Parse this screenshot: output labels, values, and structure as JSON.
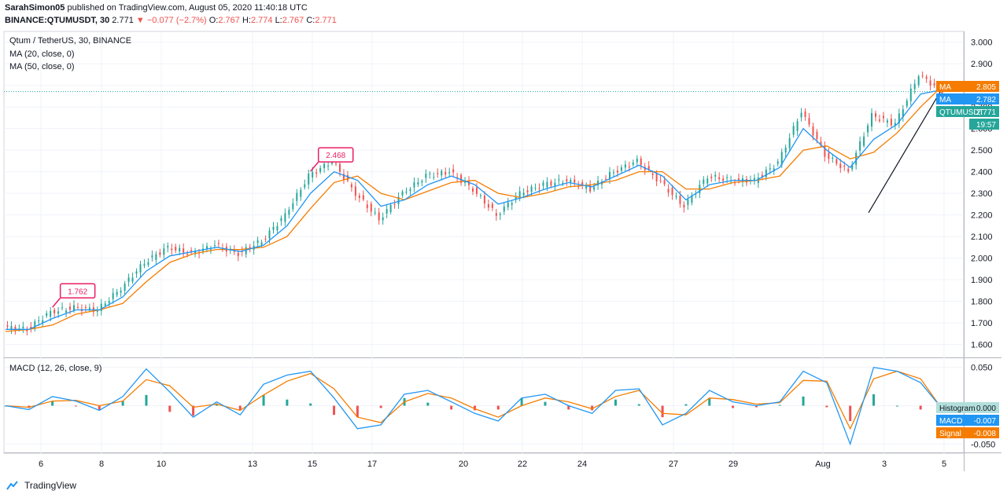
{
  "header": {
    "author": "SarahSimon05",
    "published": "published on TradingView.com, August 05, 2020 11:40:18 UTC",
    "symbol": "BINANCE:QTUMUSDT, 30",
    "last": "2.771",
    "change_arrow": "▼",
    "change": "−0.077 (−2.7%)",
    "o_label": "O:",
    "o": "2.767",
    "h_label": "H:",
    "h": "2.774",
    "l_label": "L:",
    "l": "2.767",
    "c_label": "C:",
    "c": "2.771"
  },
  "legend": {
    "title": "Qtum / TetherUS, 30, BINANCE",
    "ma20": "MA (20, close, 0)",
    "ma50": "MA (50, close, 0)",
    "macd": "MACD (12, 26, close, 9)"
  },
  "brand": "TradingView",
  "colors": {
    "up": "#26a69a",
    "down": "#ef5350",
    "ma20": "#2196f3",
    "ma50": "#f57c00",
    "macd": "#2196f3",
    "signal": "#f57c00",
    "annotation": "#e91e63",
    "grid": "#f0f3fa"
  },
  "chart_data": [
    {
      "type": "line",
      "title": "Qtum / TetherUS, 30, BINANCE",
      "x_ticks": [
        "6",
        "8",
        "10",
        "13",
        "15",
        "17",
        "20",
        "22",
        "24",
        "27",
        "29",
        "Aug",
        "3",
        "5"
      ],
      "y_ticks": [
        "3.000",
        "2.900",
        "2.800",
        "2.700",
        "2.600",
        "2.500",
        "2.400",
        "2.300",
        "2.200",
        "2.100",
        "2.000",
        "1.900",
        "1.800",
        "1.700",
        "1.600"
      ],
      "ylim": [
        1.54,
        3.05
      ],
      "grid": true,
      "series": [
        {
          "name": "QTUMUSDT",
          "x": [
            "Jul 5",
            "Jul 6",
            "Jul 6 12:00",
            "Jul 7",
            "Jul 8",
            "Jul 8 12:00",
            "Jul 9",
            "Jul 10",
            "Jul 11",
            "Jul 12",
            "Jul 13",
            "Jul 14",
            "Jul 14 12:00",
            "Jul 15",
            "Jul 15 12:00",
            "Jul 16",
            "Jul 16 12:00",
            "Jul 17",
            "Jul 18",
            "Jul 19",
            "Jul 20",
            "Jul 21",
            "Jul 22",
            "Jul 23",
            "Jul 24",
            "Jul 25",
            "Jul 26",
            "Jul 26 12:00",
            "Jul 27",
            "Jul 28",
            "Jul 29",
            "Jul 30",
            "Jul 31",
            "Aug 1",
            "Aug 1 12:00",
            "Aug 2",
            "Aug 2 12:00",
            "Aug 3",
            "Aug 4",
            "Aug 4 12:00",
            "Aug 5"
          ],
          "values": [
            1.68,
            1.67,
            1.75,
            1.77,
            1.76,
            1.86,
            1.98,
            2.05,
            2.02,
            2.06,
            2.02,
            2.08,
            2.2,
            2.38,
            2.45,
            2.3,
            2.18,
            2.3,
            2.38,
            2.4,
            2.32,
            2.2,
            2.3,
            2.34,
            2.36,
            2.32,
            2.4,
            2.45,
            2.35,
            2.24,
            2.38,
            2.36,
            2.36,
            2.44,
            2.68,
            2.48,
            2.4,
            2.66,
            2.62,
            2.85,
            2.771
          ]
        },
        {
          "name": "MA",
          "values": [
            1.67,
            1.67,
            1.72,
            1.76,
            1.76,
            1.82,
            1.94,
            2.01,
            2.03,
            2.05,
            2.03,
            2.06,
            2.15,
            2.3,
            2.4,
            2.36,
            2.24,
            2.27,
            2.34,
            2.38,
            2.34,
            2.25,
            2.28,
            2.32,
            2.35,
            2.33,
            2.38,
            2.43,
            2.38,
            2.27,
            2.34,
            2.36,
            2.36,
            2.42,
            2.6,
            2.5,
            2.42,
            2.55,
            2.62,
            2.76,
            2.782
          ]
        },
        {
          "name": "MA",
          "values": [
            1.66,
            1.67,
            1.69,
            1.74,
            1.76,
            1.79,
            1.89,
            1.98,
            2.02,
            2.04,
            2.04,
            2.05,
            2.1,
            2.23,
            2.35,
            2.38,
            2.3,
            2.27,
            2.31,
            2.35,
            2.36,
            2.3,
            2.28,
            2.3,
            2.33,
            2.34,
            2.36,
            2.4,
            2.4,
            2.32,
            2.32,
            2.35,
            2.36,
            2.38,
            2.5,
            2.52,
            2.46,
            2.49,
            2.58,
            2.7,
            2.805
          ]
        }
      ],
      "annotations": [
        {
          "x": "Jul 6 12:00",
          "label": "1.762"
        },
        {
          "x": "Jul 15",
          "label": "2.468"
        }
      ],
      "price_labels": [
        {
          "name": "MA",
          "value": "2.805",
          "color": "#f57c00"
        },
        {
          "name": "MA",
          "value": "2.782",
          "color": "#2196f3"
        },
        {
          "name": "QTUMUSDT",
          "value": "2.771",
          "color": "#26a69a"
        },
        {
          "name": "timer",
          "value": "19:57",
          "color": "#26a69a"
        }
      ]
    },
    {
      "type": "line",
      "title": "MACD (12, 26, close, 9)",
      "y_ticks": [
        "0.050",
        "0.000",
        "-0.050"
      ],
      "ylim": [
        -0.062,
        0.062
      ],
      "grid": true,
      "series": [
        {
          "name": "MACD",
          "values": [
            0.0,
            -0.005,
            0.012,
            0.006,
            -0.006,
            0.012,
            0.048,
            0.018,
            -0.015,
            0.005,
            -0.012,
            0.028,
            0.04,
            0.045,
            0.01,
            -0.03,
            -0.025,
            0.015,
            0.02,
            0.005,
            -0.01,
            -0.02,
            0.01,
            0.015,
            0.0,
            -0.01,
            0.02,
            0.022,
            -0.025,
            -0.01,
            0.02,
            0.005,
            0.0,
            0.005,
            0.045,
            0.03,
            -0.05,
            0.05,
            0.045,
            0.03,
            -0.007
          ]
        },
        {
          "name": "Signal",
          "values": [
            0.0,
            -0.002,
            0.006,
            0.007,
            0.0,
            0.006,
            0.034,
            0.026,
            -0.002,
            0.002,
            -0.006,
            0.014,
            0.032,
            0.042,
            0.022,
            -0.015,
            -0.022,
            0.005,
            0.016,
            0.01,
            -0.004,
            -0.015,
            0.0,
            0.01,
            0.005,
            -0.004,
            0.012,
            0.02,
            -0.01,
            -0.012,
            0.01,
            0.008,
            0.002,
            0.004,
            0.033,
            0.032,
            -0.03,
            0.035,
            0.045,
            0.035,
            -0.008
          ]
        }
      ],
      "price_labels": [
        {
          "name": "Histogram",
          "value": "0.000",
          "color": "#b2dfdb"
        },
        {
          "name": "MACD",
          "value": "-0.007",
          "color": "#2196f3"
        },
        {
          "name": "Signal",
          "value": "-0.008",
          "color": "#f57c00"
        }
      ]
    }
  ]
}
